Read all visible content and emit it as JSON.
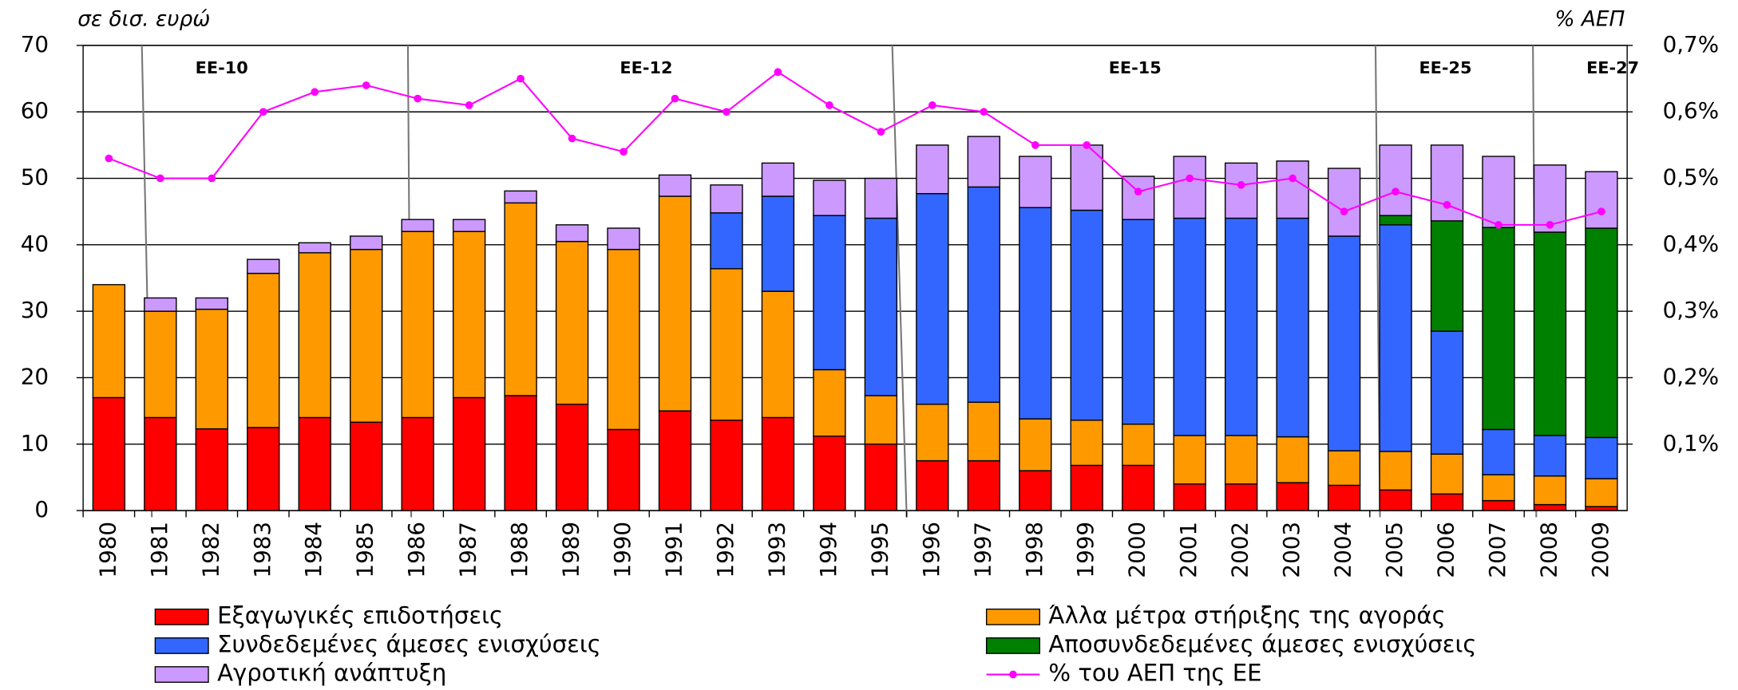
{
  "chart_data": {
    "type": "bar",
    "stacked": true,
    "y_label": "σε δισ. ευρώ",
    "y2_label": "% ΑΕΠ",
    "annotations": [
      "EE-10",
      "EE-12",
      "EE-15",
      "EE-25",
      "EE-27"
    ],
    "categories": [
      "1980",
      "1981",
      "1982",
      "1983",
      "1984",
      "1985",
      "1986",
      "1987",
      "1988",
      "1989",
      "1990",
      "1991",
      "1992",
      "1993",
      "1994",
      "1995",
      "1996",
      "1997",
      "1998",
      "1999",
      "2000",
      "2001",
      "2002",
      "2003",
      "2004",
      "2005",
      "2006",
      "2007",
      "2008",
      "2009"
    ],
    "series": [
      {
        "name": "Εξαγωγικές επιδοτήσεις",
        "color": "#ff0000",
        "values": [
          17,
          14,
          12.3,
          12.5,
          14,
          13.3,
          14,
          17,
          17.3,
          16,
          12.2,
          15,
          13.6,
          14,
          11.2,
          10,
          7.5,
          7.5,
          6,
          6.8,
          6.8,
          4,
          4,
          4.2,
          3.8,
          3.1,
          2.5,
          1.5,
          0.9,
          0.6
        ]
      },
      {
        "name": "Άλλα μέτρα στήριξης της αγοράς",
        "color": "#ff9900",
        "values": [
          17,
          16,
          18,
          23.2,
          24.8,
          26,
          28,
          25,
          29,
          24.5,
          27.1,
          32.3,
          22.8,
          19,
          10,
          7.3,
          8.5,
          8.8,
          7.8,
          6.8,
          6.2,
          7.3,
          7.3,
          6.9,
          5.2,
          5.8,
          6,
          3.9,
          4.3,
          4.2
        ]
      },
      {
        "name": "Συνδεδεμένες άμεσες ενισχύσεις",
        "color": "#3366ff",
        "values": [
          null,
          null,
          null,
          null,
          null,
          null,
          null,
          null,
          null,
          null,
          null,
          null,
          8.4,
          14.3,
          23.2,
          26.7,
          31.7,
          32.4,
          31.8,
          31.6,
          30.8,
          32.7,
          32.7,
          32.9,
          32.3,
          34.1,
          18.5,
          6.8,
          6.1,
          6.2
        ]
      },
      {
        "name": "Αποσυνδεδεμένες άμεσες ενισχύσεις",
        "color": "#008000",
        "values": [
          null,
          null,
          null,
          null,
          null,
          null,
          null,
          null,
          null,
          null,
          null,
          null,
          null,
          null,
          null,
          null,
          null,
          null,
          null,
          null,
          null,
          null,
          null,
          null,
          null,
          1.4,
          16.6,
          30.4,
          30.6,
          31.5
        ]
      },
      {
        "name": "Αγροτική ανάπτυξη",
        "color": "#cc99ff",
        "values": [
          null,
          2,
          1.7,
          2.1,
          1.5,
          2,
          1.8,
          1.8,
          1.8,
          2.5,
          3.2,
          3.2,
          4.2,
          5,
          5.3,
          6,
          7.3,
          7.6,
          7.7,
          9.8,
          6.5,
          9.3,
          8.3,
          8.6,
          10.2,
          10.6,
          11.4,
          10.7,
          10.1,
          8.5
        ]
      },
      {
        "name": "% του ΑΕΠ της ΕΕ",
        "color": "#ff00ff",
        "type": "line",
        "axis": "y2",
        "values": [
          0.53,
          0.5,
          0.5,
          0.6,
          0.63,
          0.64,
          0.62,
          0.61,
          0.65,
          0.56,
          0.54,
          0.62,
          0.6,
          0.66,
          0.61,
          0.57,
          0.61,
          0.6,
          0.55,
          0.55,
          0.48,
          0.5,
          0.49,
          0.5,
          0.45,
          0.48,
          0.46,
          0.43,
          0.43,
          0.45
        ]
      }
    ],
    "ylim": [
      0,
      70
    ],
    "yticks": [
      0,
      10,
      20,
      30,
      40,
      50,
      60,
      70
    ],
    "y2lim": [
      0,
      0.7
    ],
    "y2ticks": [
      {
        "value": 0.1,
        "label": "0,1%"
      },
      {
        "value": 0.2,
        "label": "0,2%"
      },
      {
        "value": 0.3,
        "label": "0,3%"
      },
      {
        "value": 0.4,
        "label": "0,4%"
      },
      {
        "value": 0.5,
        "label": "0,5%"
      },
      {
        "value": 0.6,
        "label": "0,6%"
      },
      {
        "value": 0.7,
        "label": "0,7%"
      }
    ],
    "grid": true
  }
}
